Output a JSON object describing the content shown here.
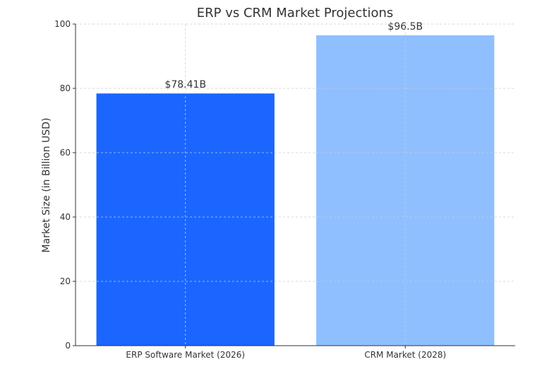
{
  "chart_data": {
    "type": "bar",
    "title": "ERP vs CRM Market Projections",
    "xlabel": "",
    "ylabel": "Market Size (in Billion USD)",
    "categories": [
      "ERP Software Market (2026)",
      "CRM Market (2028)"
    ],
    "values": [
      78.41,
      96.5
    ],
    "data_labels": [
      "$78.41B",
      "$96.5B"
    ],
    "colors": [
      "#1a66ff",
      "#8fbfff"
    ],
    "ylim": [
      0,
      100
    ],
    "yticks": [
      0,
      20,
      40,
      60,
      80,
      100
    ],
    "grid": true,
    "legend": "none"
  }
}
